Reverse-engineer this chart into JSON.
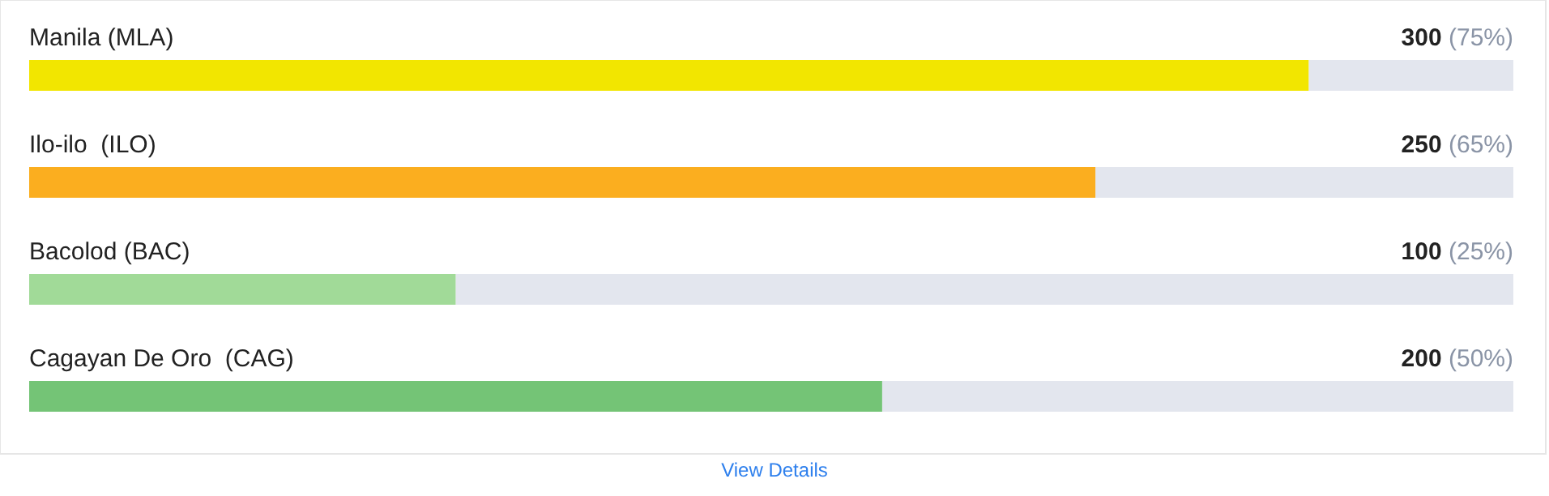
{
  "chart_data": {
    "type": "bar",
    "orientation": "horizontal",
    "categories": [
      "Manila (MLA)",
      "Ilo-ilo  (ILO)",
      "Bacolod (BAC)",
      "Cagayan De Oro  (CAG)"
    ],
    "values": [
      300,
      250,
      100,
      200
    ],
    "colors": [
      "#f2e600",
      "#fbae1f",
      "#a1da98",
      "#74c476"
    ],
    "value_labels": [
      "300 (75%)",
      "250 (65%)",
      "100 (25%)",
      "200 (50%)"
    ],
    "annotations": [
      "View Details"
    ]
  }
}
